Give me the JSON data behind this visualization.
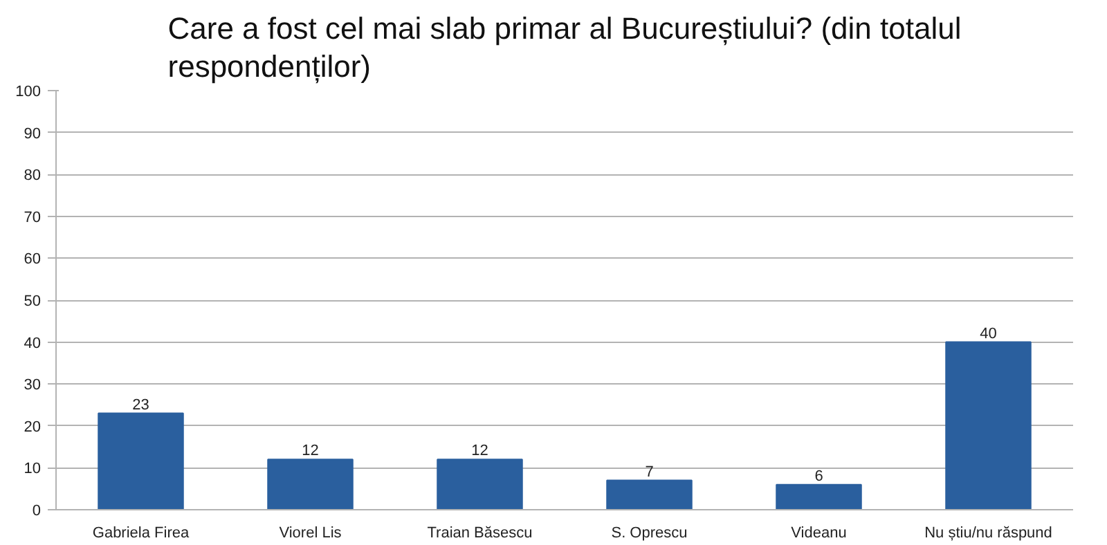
{
  "chart_data": {
    "type": "bar",
    "title": "Care a fost cel mai slab primar al Bucureștiului? (din totalul respondenților)",
    "categories": [
      "Gabriela Firea",
      "Viorel Lis",
      "Traian Băsescu",
      "S. Oprescu",
      "Videanu",
      "Nu știu/nu răspund"
    ],
    "values": [
      23,
      12,
      12,
      7,
      6,
      40
    ],
    "color": "#2a5f9e",
    "ylim": [
      0,
      100
    ],
    "yticks": [
      0,
      10,
      20,
      30,
      40,
      50,
      60,
      70,
      80,
      90,
      100
    ],
    "grid": "y",
    "data_labels": true
  }
}
